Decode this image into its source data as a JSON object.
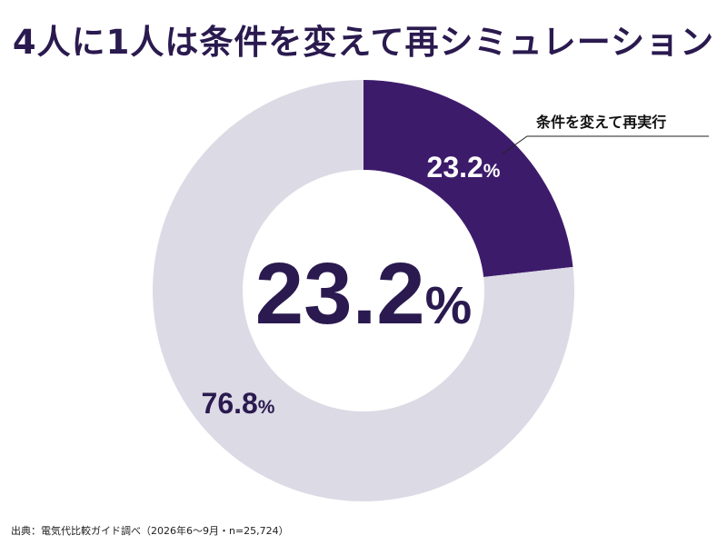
{
  "title": "4人に1人は条件を変えて再シミュレーション",
  "source": "出典：電気代比較ガイド調べ（2026年6〜9月・n=25,724）",
  "center_label": {
    "number": "23.2",
    "unit": "%"
  },
  "colors": {
    "primary": "#3d1b6b",
    "secondary": "#dcdae5",
    "text": "#2a1a4f"
  },
  "chart_data": {
    "type": "pie",
    "variant": "donut",
    "title": "4人に1人は条件を変えて再シミュレーション",
    "slices": [
      {
        "label": "条件を変えて再実行",
        "value": 23.2,
        "display_number": "23.2",
        "display_unit": "%",
        "color": "#3d1b6b"
      },
      {
        "label": "",
        "value": 76.8,
        "display_number": "76.8",
        "display_unit": "%",
        "color": "#dcdae5"
      }
    ],
    "start_angle": "12 o'clock",
    "direction": "clockwise"
  }
}
